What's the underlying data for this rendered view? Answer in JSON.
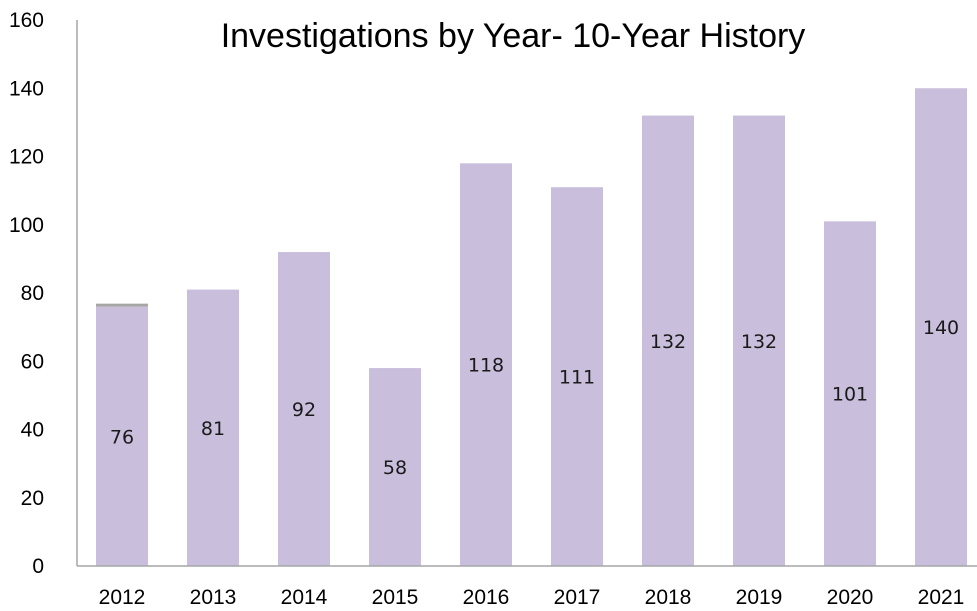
{
  "chart_data": {
    "type": "bar",
    "title": "Investigations by Year- 10-Year History",
    "xlabel": "",
    "ylabel": "",
    "categories": [
      "2012",
      "2013",
      "2014",
      "2015",
      "2016",
      "2017",
      "2018",
      "2019",
      "2020",
      "2021"
    ],
    "values": [
      76,
      81,
      92,
      58,
      118,
      111,
      132,
      132,
      101,
      140
    ],
    "ylim": [
      0,
      160
    ],
    "yticks": [
      0,
      20,
      40,
      60,
      80,
      100,
      120,
      140,
      160
    ],
    "grid": false,
    "legend": "none",
    "colors": {
      "bar": "#c9bfdc",
      "axis": "#a6a6a6",
      "cap": "#a6a6a6"
    }
  }
}
